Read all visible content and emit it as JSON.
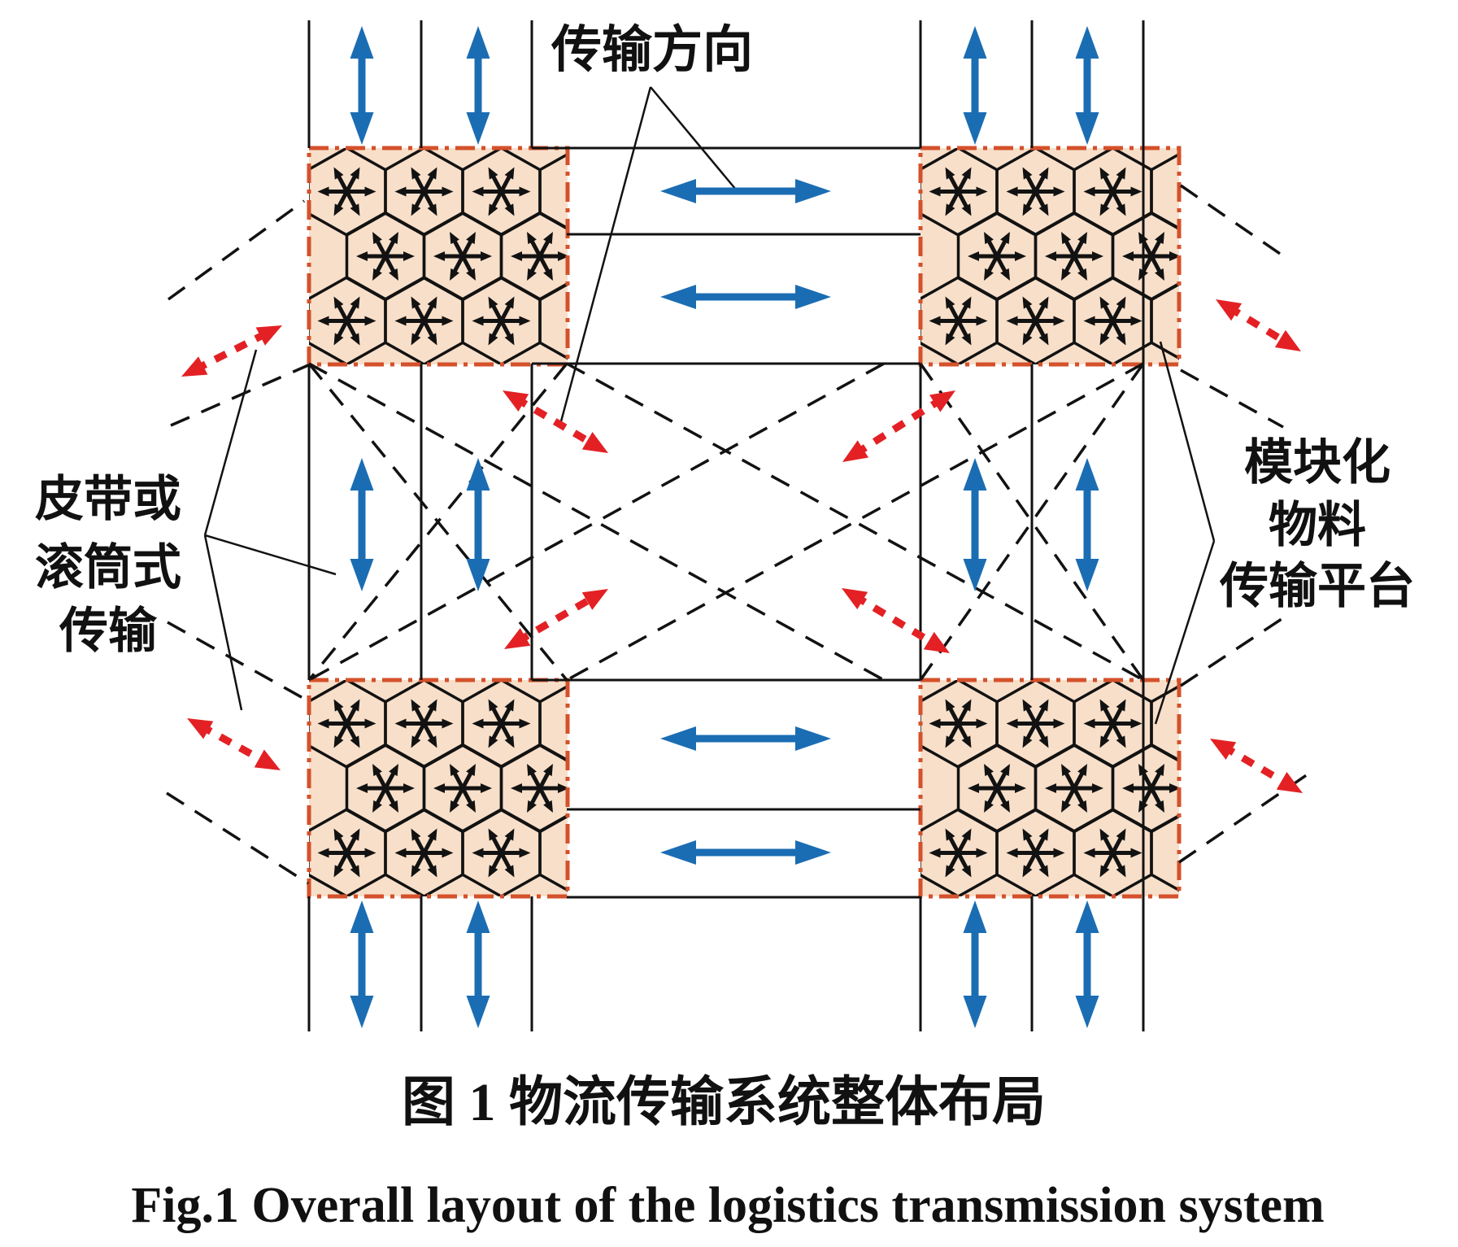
{
  "diagram": {
    "labels": {
      "transfer_direction": "传输方向",
      "belt_roller": {
        "lines": [
          "皮带或",
          "滚筒式",
          "传输"
        ]
      },
      "modular_platform": {
        "lines": [
          "模块化",
          "物料",
          "传输平台"
        ]
      }
    },
    "captions": {
      "zh": "图 1  物流传输系统整体布局",
      "en": "Fig.1  Overall layout of the logistics transmission system"
    },
    "colors": {
      "cluster_fill": "#F8DFC9",
      "cluster_border": "#D4512B",
      "blue_arrow": "#1B6DB3",
      "red_arrow": "#E32124",
      "line": "#121212"
    }
  }
}
